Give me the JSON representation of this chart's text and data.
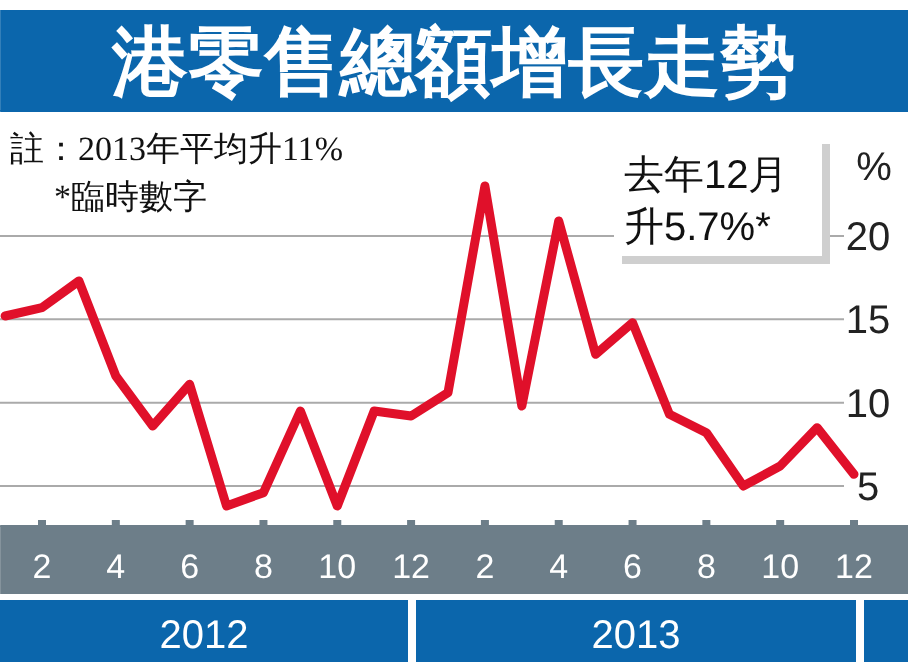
{
  "chart_data": {
    "type": "line",
    "title": "港零售總額增長走勢",
    "ylabel": "%",
    "x": [
      "2012-01",
      "2012-02",
      "2012-03",
      "2012-04",
      "2012-05",
      "2012-06",
      "2012-07",
      "2012-08",
      "2012-09",
      "2012-10",
      "2012-11",
      "2012-12",
      "2013-01",
      "2013-02",
      "2013-03",
      "2013-04",
      "2013-05",
      "2013-06",
      "2013-07",
      "2013-08",
      "2013-09",
      "2013-10",
      "2013-11",
      "2013-12"
    ],
    "series": [
      {
        "color": "#e0102a",
        "values": [
          15.2,
          15.7,
          17.3,
          11.6,
          8.6,
          11.1,
          3.8,
          4.6,
          9.5,
          3.8,
          9.5,
          9.2,
          10.6,
          23.0,
          9.8,
          20.9,
          12.9,
          14.8,
          9.3,
          8.2,
          5.0,
          6.2,
          8.5,
          5.7
        ]
      }
    ],
    "xticks": [
      {
        "value": "2012-02",
        "label": "2"
      },
      {
        "value": "2012-04",
        "label": "4"
      },
      {
        "value": "2012-06",
        "label": "6"
      },
      {
        "value": "2012-08",
        "label": "8"
      },
      {
        "value": "2012-10",
        "label": "10"
      },
      {
        "value": "2012-12",
        "label": "12"
      },
      {
        "value": "2013-02",
        "label": "2"
      },
      {
        "value": "2013-04",
        "label": "4"
      },
      {
        "value": "2013-06",
        "label": "6"
      },
      {
        "value": "2013-08",
        "label": "8"
      },
      {
        "value": "2013-10",
        "label": "10"
      },
      {
        "value": "2013-12",
        "label": "12"
      }
    ],
    "xlim": [
      "2011-12-27",
      "2014-01-15"
    ],
    "ylim": [
      2.6,
      27.5
    ],
    "yticks": [
      5,
      10,
      15,
      20
    ],
    "grid": "y",
    "marker": "none",
    "line_style": "solid",
    "annotations": [
      "註：2013年平均升11%",
      "*臨時數字",
      "去年12月升5.7%*",
      "2012",
      "2013"
    ]
  }
}
